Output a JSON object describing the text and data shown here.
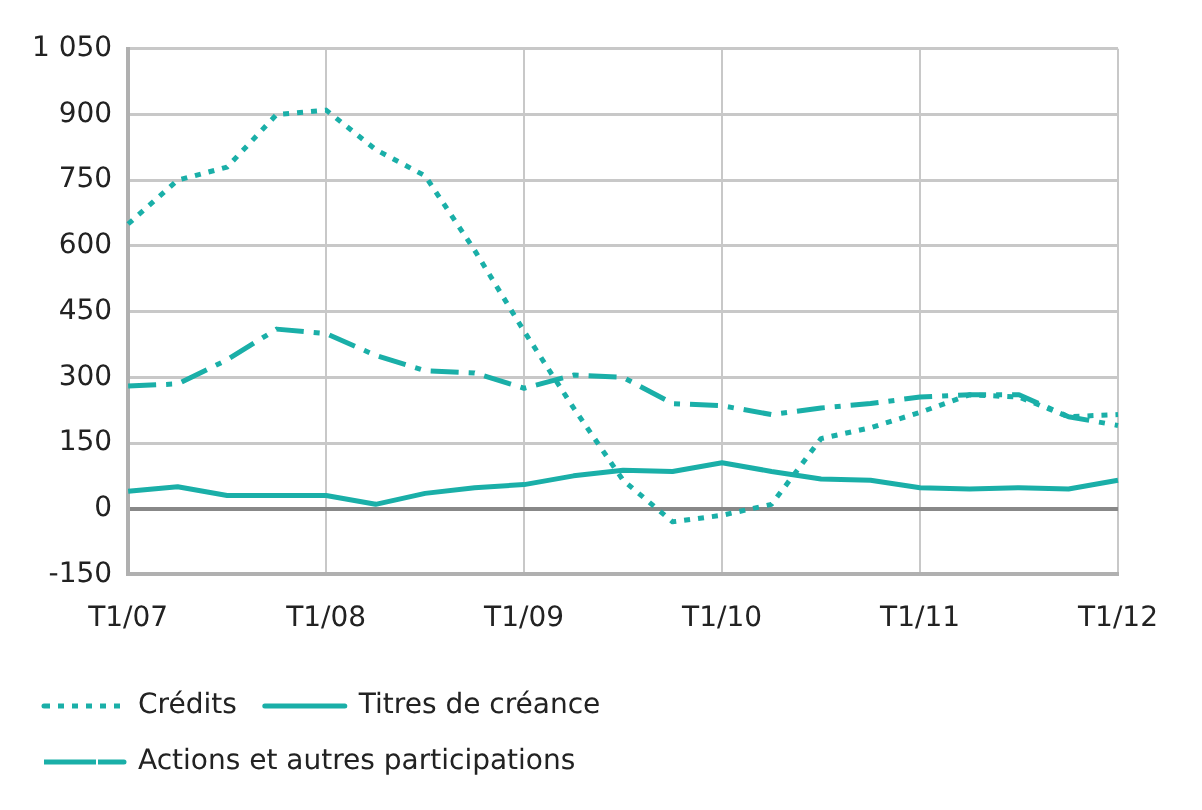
{
  "chart_data": {
    "type": "line",
    "categories": [
      "T1/07",
      null,
      null,
      null,
      "T1/08",
      null,
      null,
      null,
      "T1/09",
      null,
      null,
      null,
      "T1/10",
      null,
      null,
      null,
      "T1/11",
      null,
      null,
      null,
      "T1/12"
    ],
    "series": [
      {
        "name": "Crédits",
        "color": "#1aafa8",
        "line_style": "dotted",
        "values": [
          650,
          750,
          780,
          900,
          910,
          820,
          760,
          590,
          405,
          230,
          65,
          -30,
          -15,
          10,
          160,
          185,
          220,
          260,
          255,
          210,
          215
        ]
      },
      {
        "name": "Titres de créance",
        "color": "#1aafa8",
        "line_style": "solid",
        "values": [
          40,
          50,
          30,
          30,
          30,
          10,
          35,
          48,
          55,
          75,
          88,
          85,
          105,
          85,
          68,
          65,
          48,
          45,
          48,
          45,
          65
        ]
      },
      {
        "name": "Actions et autres participations",
        "color": "#1aafa8",
        "line_style": "dashdot",
        "values": [
          280,
          285,
          340,
          410,
          400,
          350,
          315,
          310,
          275,
          305,
          300,
          240,
          235,
          215,
          230,
          240,
          255,
          260,
          260,
          210,
          190
        ]
      }
    ],
    "ylim": [
      -150,
      1050
    ],
    "yticks": [
      -150,
      0,
      150,
      300,
      450,
      600,
      750,
      900,
      {
        "value": 1050,
        "label": "1 050"
      }
    ],
    "grid": true,
    "legend": "bottom",
    "marker": "none"
  }
}
